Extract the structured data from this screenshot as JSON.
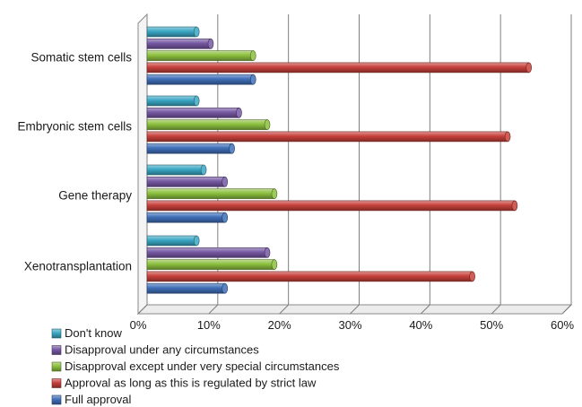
{
  "chart_data": {
    "type": "bar",
    "orientation": "horizontal",
    "style": "3d-cylinder",
    "categories": [
      "Somatic stem cells",
      "Embryonic stem cells",
      "Gene therapy",
      "Xenotransplantation"
    ],
    "series": [
      {
        "name": "Don't know",
        "color": "#3aa7c4",
        "values": [
          7,
          7,
          8,
          7
        ]
      },
      {
        "name": "Disapproval  under any circumstances",
        "color": "#7658a3",
        "values": [
          9,
          13,
          11,
          17
        ]
      },
      {
        "name": "Disapproval except under very special circumstances",
        "color": "#8cc03e",
        "values": [
          15,
          17,
          18,
          18
        ]
      },
      {
        "name": "Approval as long as this is regulated by strict law",
        "color": "#c7403b",
        "values": [
          54,
          51,
          52,
          46
        ]
      },
      {
        "name": "Full approval",
        "color": "#3f6fb8",
        "values": [
          15,
          12,
          11,
          11
        ]
      }
    ],
    "xlim": [
      0,
      60
    ],
    "x_tick_labels": [
      "0%",
      "10%",
      "20%",
      "30%",
      "40%",
      "50%",
      "60%"
    ],
    "grid": true,
    "legend_position": "bottom-left"
  }
}
